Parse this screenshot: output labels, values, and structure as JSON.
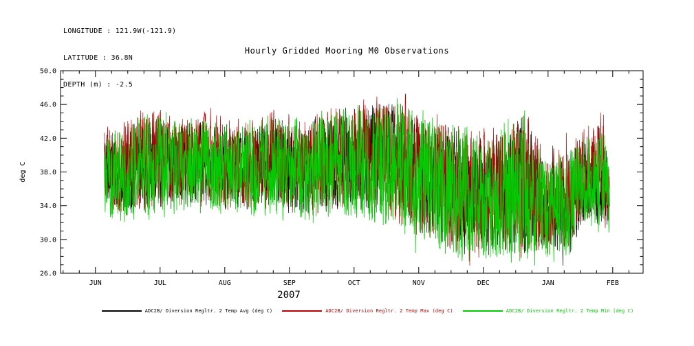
{
  "header": {
    "longitude": "LONGITUDE : 121.9W(-121.9)",
    "latitude": "LATITUDE : 36.8N",
    "depth": "DEPTH (m) : -2.5"
  },
  "title": "Hourly Gridded Mooring M0 Observations",
  "chart_data": {
    "type": "line",
    "title": "Hourly Gridded Mooring M0 Observations",
    "xlabel": "2007",
    "ylabel": "deg C",
    "year_label": "2007",
    "ylim": [
      26.0,
      50.0
    ],
    "yticks": [
      26.0,
      30.0,
      34.0,
      38.0,
      42.0,
      46.0,
      50.0
    ],
    "y_minor_step": 1.0,
    "xlim_months": [
      -0.54,
      8.47
    ],
    "xtick_labels": [
      "JUN",
      "JUL",
      "AUG",
      "SEP",
      "OCT",
      "NOV",
      "DEC",
      "JAN",
      "FEB"
    ],
    "x_minor_per_month": 4,
    "grid": false,
    "legend_position": "bottom",
    "series": [
      {
        "name": "ADC2B/ Diversion Regltr. 2 Temp Avg (deg C)",
        "color": "#000000",
        "seed": 11,
        "offset": 0.0,
        "scale": 0.88,
        "width": 0.7
      },
      {
        "name": "ADC2B/ Diversion Regltr. 2 Temp Max (deg C)",
        "color": "#bb0000",
        "seed": 97,
        "offset": 0.4,
        "scale": 0.97,
        "width": 0.7
      },
      {
        "name": "ADC2B/ Diversion Regltr. 2 Temp Min (deg C)",
        "color": "#00cc00",
        "seed": 313,
        "offset": -0.3,
        "scale": 1.0,
        "width": 0.8
      }
    ],
    "envelope_note": "control points [month_x, center_degC, half_range_degC] estimated from the plotted band; JUN=0 .. FEB=8",
    "envelope": [
      [
        0.14,
        38.5,
        5.0
      ],
      [
        0.45,
        38.0,
        6.0
      ],
      [
        0.85,
        39.5,
        6.8
      ],
      [
        1.2,
        39.0,
        5.5
      ],
      [
        1.7,
        39.0,
        5.8
      ],
      [
        2.2,
        38.5,
        5.5
      ],
      [
        2.75,
        39.0,
        6.0
      ],
      [
        3.3,
        38.5,
        6.5
      ],
      [
        3.8,
        39.5,
        6.5
      ],
      [
        4.3,
        39.5,
        7.5
      ],
      [
        4.75,
        39.0,
        8.0
      ],
      [
        5.1,
        37.5,
        8.0
      ],
      [
        5.5,
        36.0,
        8.5
      ],
      [
        5.9,
        35.0,
        8.0
      ],
      [
        6.25,
        35.0,
        8.0
      ],
      [
        6.6,
        36.5,
        9.5
      ],
      [
        6.95,
        34.0,
        6.5
      ],
      [
        7.3,
        34.5,
        6.5
      ],
      [
        7.6,
        37.5,
        6.0
      ],
      [
        7.85,
        38.0,
        7.0
      ],
      [
        7.95,
        34.5,
        3.5
      ]
    ],
    "gen": {
      "points": 2300,
      "x_start": 0.14,
      "x_end": 7.95,
      "smooth": 0.15,
      "spike_prob": 0.015,
      "spike_gain": 1.3,
      "clamp": [
        26.9,
        48.8
      ]
    }
  },
  "legend": {
    "items": [
      {
        "label": "ADC2B/ Diversion Regltr. 2 Temp Avg (deg C)"
      },
      {
        "label": "ADC2B/ Diversion Regltr. 2 Temp Max (deg C)"
      },
      {
        "label": "ADC2B/ Diversion Regltr. 2 Temp Min (deg C)"
      }
    ]
  }
}
